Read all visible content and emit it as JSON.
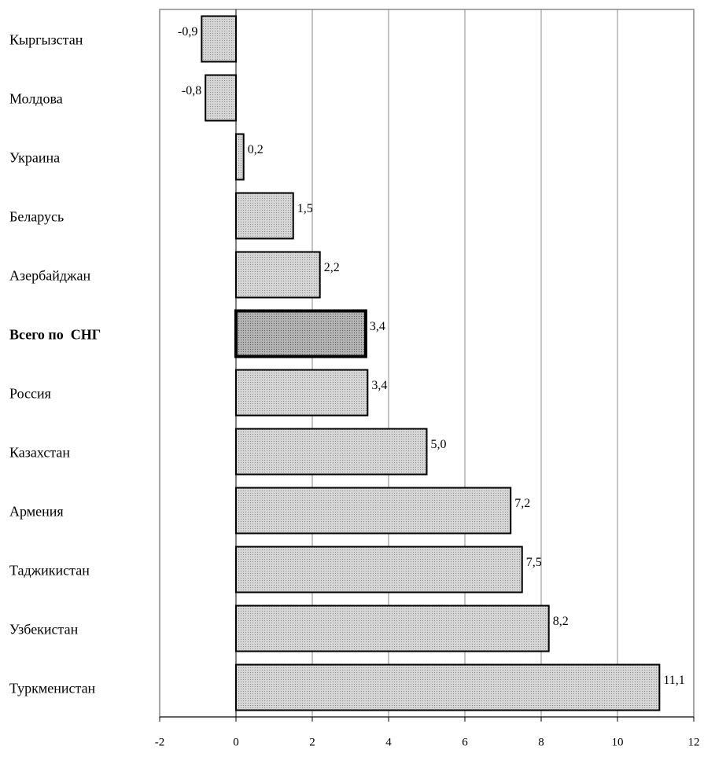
{
  "chart_data": {
    "type": "barh",
    "categories": [
      "Кыргызстан",
      "Молдова",
      "Украина",
      "Беларусь",
      "Азербайджан",
      "Всего по  СНГ",
      "Россия",
      "Казахстан",
      "Армения",
      "Таджикистан",
      "Узбекистан",
      "Туркменистан"
    ],
    "values": [
      -0.9,
      -0.8,
      0.2,
      1.5,
      2.2,
      3.4,
      3.45,
      5.0,
      7.2,
      7.5,
      8.2,
      11.1
    ],
    "value_labels": [
      "-0,9",
      "-0,8",
      "0,2",
      "1,5",
      "2,2",
      "3,4",
      "3,4",
      "5,0",
      "7,2",
      "7,5",
      "8,2",
      "11,1"
    ],
    "color": "#c8c8c8",
    "highlight": 5,
    "xlim": [
      -2,
      12
    ],
    "xticks": [
      -2,
      0,
      2,
      4,
      6,
      8,
      10,
      12
    ],
    "grid": true
  }
}
